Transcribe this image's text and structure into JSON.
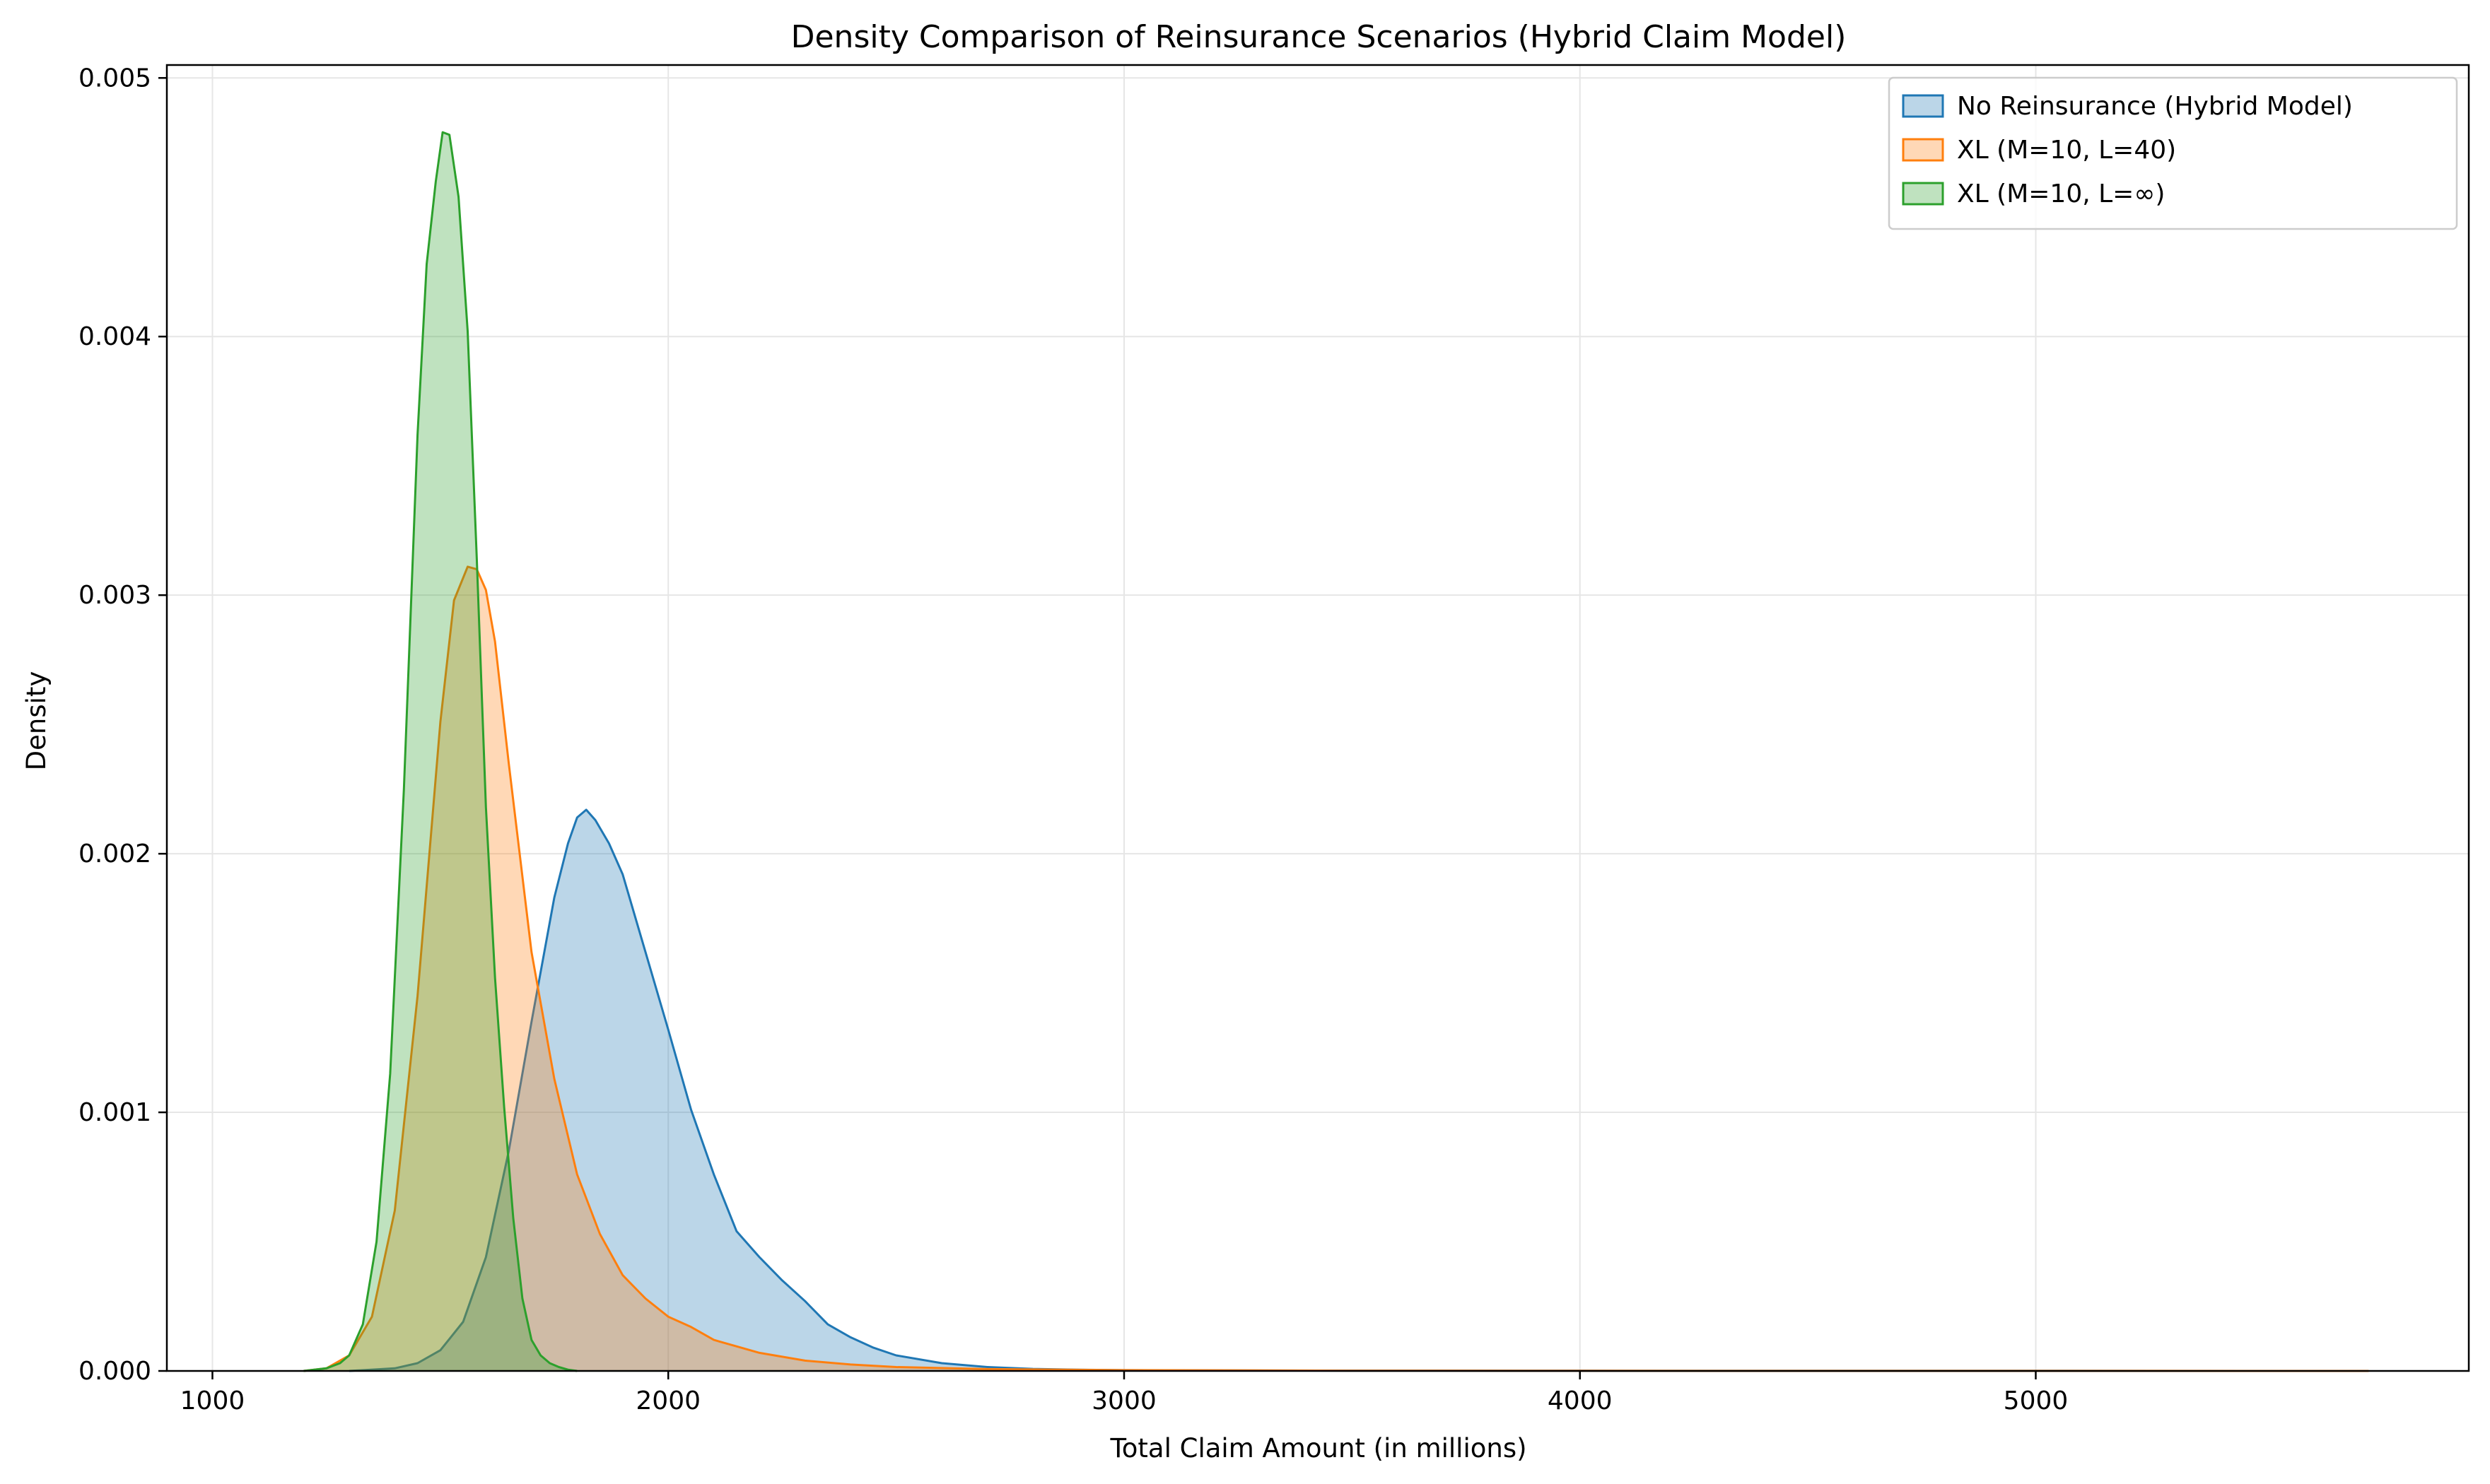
{
  "chart_data": {
    "type": "area",
    "title": "Density Comparison of Reinsurance Scenarios (Hybrid Claim Model)",
    "xlabel": "Total Claim Amount (in millions)",
    "ylabel": "Density",
    "xlim": [
      900,
      5950
    ],
    "ylim": [
      0,
      0.00505
    ],
    "xticks": [
      1000,
      2000,
      3000,
      4000,
      5000
    ],
    "yticks": [
      0,
      0.001,
      0.002,
      0.003,
      0.004,
      0.005
    ],
    "xtick_labels": [
      "1000",
      "2000",
      "3000",
      "4000",
      "5000"
    ],
    "ytick_labels": [
      "0.000",
      "0.001",
      "0.002",
      "0.003",
      "0.004",
      "0.005"
    ],
    "grid": true,
    "legend_position": "top-right",
    "series": [
      {
        "name": "No Reinsurance (Hybrid Model)",
        "color": "#1f77b4",
        "x": [
          1300,
          1400,
          1450,
          1500,
          1550,
          1600,
          1650,
          1700,
          1750,
          1780,
          1800,
          1820,
          1840,
          1870,
          1900,
          1950,
          2000,
          2050,
          2100,
          2150,
          2200,
          2250,
          2300,
          2350,
          2400,
          2450,
          2500,
          2600,
          2700,
          2800,
          2900,
          3000,
          3200,
          3500,
          4000,
          4500,
          5000,
          5500,
          5730
        ],
        "y": [
          0,
          1e-05,
          3e-05,
          8e-05,
          0.00019,
          0.00044,
          0.00085,
          0.00135,
          0.00183,
          0.00204,
          0.00214,
          0.00217,
          0.00213,
          0.00204,
          0.00192,
          0.00162,
          0.00132,
          0.00101,
          0.00076,
          0.00054,
          0.00044,
          0.00035,
          0.00027,
          0.00018,
          0.00013,
          9e-05,
          6e-05,
          3e-05,
          1.5e-05,
          8e-06,
          5e-06,
          3e-06,
          2e-06,
          1e-06,
          5e-07,
          3e-07,
          2e-07,
          1e-07,
          0
        ]
      },
      {
        "name": "XL (M=10, L=40)",
        "color": "#ff7f0e",
        "x": [
          1200,
          1250,
          1300,
          1350,
          1400,
          1450,
          1500,
          1530,
          1560,
          1580,
          1600,
          1620,
          1650,
          1700,
          1750,
          1800,
          1850,
          1900,
          1950,
          2000,
          2050,
          2100,
          2200,
          2300,
          2400,
          2500,
          2700,
          3000,
          3500,
          4000,
          5000,
          5730
        ],
        "y": [
          0,
          1e-05,
          6e-05,
          0.00021,
          0.00062,
          0.00145,
          0.00251,
          0.00298,
          0.00311,
          0.0031,
          0.00302,
          0.00282,
          0.00235,
          0.00162,
          0.00113,
          0.00076,
          0.00053,
          0.00037,
          0.00028,
          0.00021,
          0.00017,
          0.00012,
          7e-05,
          4e-05,
          2.5e-05,
          1.5e-05,
          7e-06,
          3e-06,
          1e-06,
          5e-07,
          2e-07,
          0
        ]
      },
      {
        "name": "XL (M=10, L=∞)",
        "color": "#2ca02c",
        "x": [
          1200,
          1250,
          1280,
          1300,
          1330,
          1360,
          1390,
          1420,
          1450,
          1470,
          1490,
          1505,
          1520,
          1540,
          1560,
          1580,
          1600,
          1620,
          1640,
          1660,
          1680,
          1700,
          1720,
          1740,
          1760,
          1780,
          1800
        ],
        "y": [
          0,
          1e-05,
          3e-05,
          6e-05,
          0.00018,
          0.0005,
          0.00115,
          0.00225,
          0.00362,
          0.00428,
          0.0046,
          0.00479,
          0.00478,
          0.00454,
          0.00402,
          0.00314,
          0.00218,
          0.00152,
          0.00102,
          0.00059,
          0.00028,
          0.00012,
          6e-05,
          3e-05,
          1.5e-05,
          5e-06,
          0
        ]
      }
    ]
  }
}
